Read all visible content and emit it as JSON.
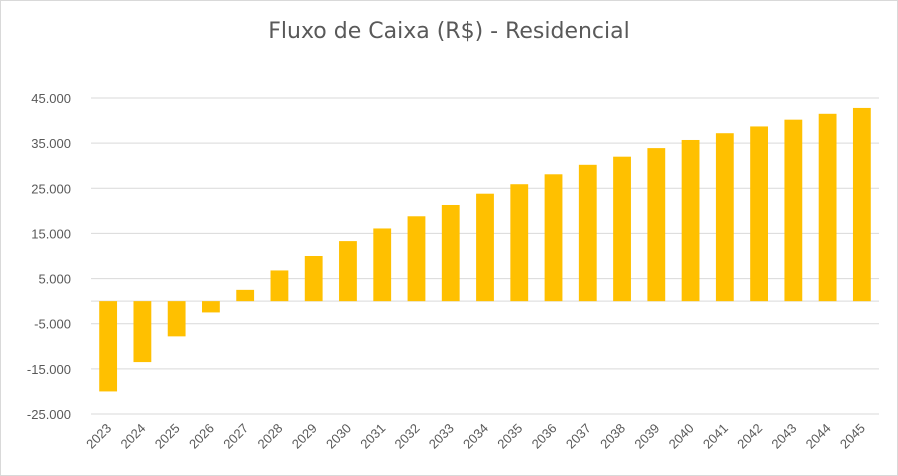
{
  "chart_data": {
    "type": "bar",
    "title": "Fluxo de Caixa (R$) - Residencial",
    "xlabel": "",
    "ylabel": "",
    "categories": [
      "2023",
      "2024",
      "2025",
      "2026",
      "2027",
      "2028",
      "2029",
      "2030",
      "2031",
      "2032",
      "2033",
      "2034",
      "2035",
      "2036",
      "2037",
      "2038",
      "2039",
      "2040",
      "2041",
      "2042",
      "2043",
      "2044",
      "2045"
    ],
    "values": [
      -20000,
      -13500,
      -7800,
      -2500,
      2500,
      6800,
      10000,
      13300,
      16100,
      18800,
      21300,
      23800,
      25900,
      28100,
      30200,
      32000,
      33900,
      35700,
      37200,
      38700,
      40200,
      41500,
      42800
    ],
    "ylim": [
      -25000,
      45000
    ],
    "yticks": [
      45000,
      35000,
      25000,
      15000,
      5000,
      -5000,
      -15000,
      -25000
    ],
    "ytick_labels": [
      "45.000",
      "35.000",
      "25.000",
      "15.000",
      "5.000",
      "-5.000",
      "-15.000",
      "-25.000"
    ],
    "grid": true,
    "legend": "none",
    "colors": {
      "bar": "#FFC000",
      "grid": "#d9d9d9",
      "text": "#595959"
    }
  }
}
